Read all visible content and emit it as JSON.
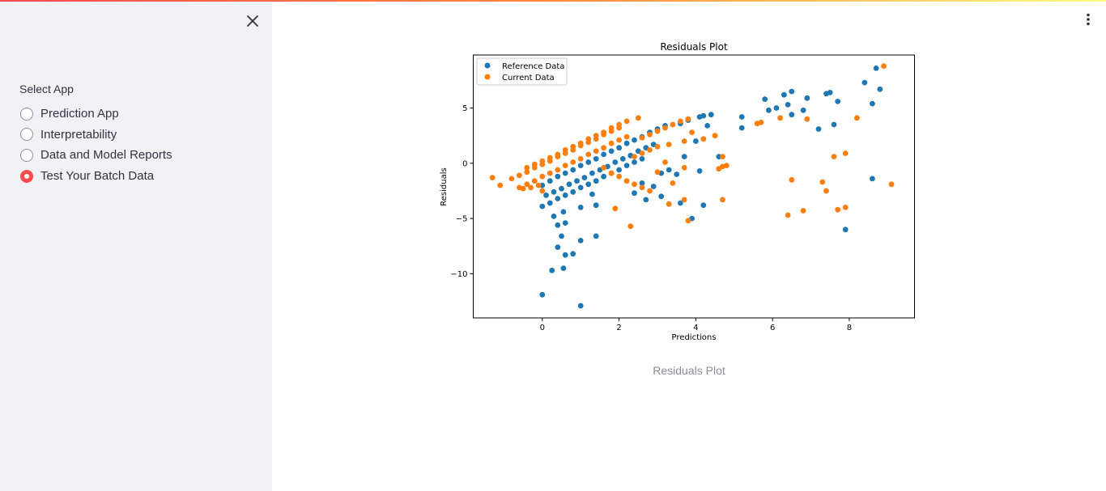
{
  "sidebar": {
    "close_icon": "close-icon",
    "select_label": "Select App",
    "options": [
      {
        "label": "Prediction App",
        "selected": false
      },
      {
        "label": "Interpretability",
        "selected": false
      },
      {
        "label": "Data and Model Reports",
        "selected": false
      },
      {
        "label": "Test Your Batch Data",
        "selected": true
      }
    ]
  },
  "header": {
    "menu_icon": "kebab-menu-icon"
  },
  "colors": {
    "accent": "#ff4b4b",
    "sidebar_bg": "#f0f2f6",
    "reference": "#1f77b4",
    "current": "#ff7f0e"
  },
  "caption": "Residuals Plot",
  "chart_data": {
    "type": "scatter",
    "title": "Residuals Plot",
    "xlabel": "Predictions",
    "ylabel": "Residuals",
    "xlim": [
      -1.8,
      9.7
    ],
    "ylim": [
      -14.0,
      9.8
    ],
    "xticks": [
      0,
      2,
      4,
      6,
      8
    ],
    "yticks": [
      -10,
      -5,
      0,
      5
    ],
    "grid": false,
    "legend_location": "upper-left",
    "series": [
      {
        "name": "Reference Data",
        "color": "#1f77b4",
        "points": [
          [
            0.0,
            -2.0
          ],
          [
            0.2,
            -1.6
          ],
          [
            0.4,
            -1.2
          ],
          [
            0.6,
            -0.9
          ],
          [
            0.8,
            -0.6
          ],
          [
            1.0,
            -0.2
          ],
          [
            1.2,
            0.1
          ],
          [
            1.4,
            0.4
          ],
          [
            1.6,
            0.8
          ],
          [
            1.8,
            1.1
          ],
          [
            2.0,
            1.4
          ],
          [
            2.2,
            1.8
          ],
          [
            2.4,
            2.1
          ],
          [
            2.6,
            2.4
          ],
          [
            2.8,
            2.8
          ],
          [
            3.0,
            3.1
          ],
          [
            3.2,
            3.4
          ],
          [
            0.1,
            -2.9
          ],
          [
            0.3,
            -2.6
          ],
          [
            0.5,
            -2.3
          ],
          [
            0.7,
            -1.9
          ],
          [
            0.9,
            -1.6
          ],
          [
            1.1,
            -1.3
          ],
          [
            1.3,
            -0.9
          ],
          [
            1.5,
            -0.6
          ],
          [
            1.7,
            -0.3
          ],
          [
            1.9,
            0.1
          ],
          [
            2.1,
            0.4
          ],
          [
            2.3,
            0.7
          ],
          [
            2.5,
            1.1
          ],
          [
            2.7,
            1.4
          ],
          [
            2.9,
            1.7
          ],
          [
            0.0,
            -3.9
          ],
          [
            0.2,
            -3.6
          ],
          [
            0.4,
            -3.2
          ],
          [
            0.6,
            -2.9
          ],
          [
            0.8,
            -2.6
          ],
          [
            1.0,
            -2.2
          ],
          [
            1.2,
            -1.9
          ],
          [
            1.4,
            -1.6
          ],
          [
            1.6,
            -1.2
          ],
          [
            1.8,
            -0.9
          ],
          [
            2.0,
            -0.6
          ],
          [
            2.2,
            -0.2
          ],
          [
            2.4,
            0.1
          ],
          [
            2.6,
            0.4
          ],
          [
            3.6,
            3.6
          ],
          [
            3.8,
            3.9
          ],
          [
            4.1,
            4.2
          ],
          [
            4.2,
            4.3
          ],
          [
            4.4,
            4.4
          ],
          [
            4.3,
            3.4
          ],
          [
            4.0,
            2.0
          ],
          [
            3.7,
            0.6
          ],
          [
            3.5,
            -1.0
          ],
          [
            3.3,
            -0.6
          ],
          [
            2.9,
            -2.1
          ],
          [
            2.6,
            -1.8
          ],
          [
            2.4,
            -2.7
          ],
          [
            2.7,
            -3.3
          ],
          [
            3.1,
            -3.0
          ],
          [
            0.3,
            -4.8
          ],
          [
            0.4,
            -5.6
          ],
          [
            0.5,
            -6.6
          ],
          [
            0.6,
            -5.4
          ],
          [
            0.55,
            -4.4
          ],
          [
            0.4,
            -7.6
          ],
          [
            0.6,
            -8.3
          ],
          [
            0.55,
            -9.5
          ],
          [
            0.25,
            -9.7
          ],
          [
            0.8,
            -8.2
          ],
          [
            1.0,
            -7.0
          ],
          [
            1.4,
            -6.6
          ],
          [
            0.0,
            -11.9
          ],
          [
            1.0,
            -12.9
          ],
          [
            1.3,
            -2.8
          ],
          [
            1.4,
            -3.8
          ],
          [
            1.0,
            -4.0
          ],
          [
            3.6,
            -3.6
          ],
          [
            4.2,
            -3.8
          ],
          [
            3.9,
            -5.0
          ],
          [
            3.1,
            -0.9
          ],
          [
            4.1,
            -0.7
          ],
          [
            4.6,
            0.6
          ],
          [
            5.2,
            3.2
          ],
          [
            5.2,
            4.2
          ],
          [
            5.8,
            5.8
          ],
          [
            5.9,
            4.8
          ],
          [
            6.1,
            5.0
          ],
          [
            6.3,
            6.2
          ],
          [
            6.4,
            5.3
          ],
          [
            6.5,
            4.4
          ],
          [
            6.5,
            6.5
          ],
          [
            6.8,
            4.8
          ],
          [
            6.9,
            5.9
          ],
          [
            7.2,
            3.1
          ],
          [
            7.4,
            6.3
          ],
          [
            7.5,
            6.4
          ],
          [
            7.6,
            3.5
          ],
          [
            7.7,
            5.6
          ],
          [
            8.4,
            7.3
          ],
          [
            8.6,
            5.4
          ],
          [
            8.7,
            8.6
          ],
          [
            8.8,
            6.7
          ],
          [
            8.6,
            -1.4
          ],
          [
            7.9,
            -6.0
          ]
        ]
      },
      {
        "name": "Current Data",
        "color": "#ff7f0e",
        "points": [
          [
            -0.4,
            -0.4
          ],
          [
            -0.2,
            -0.1
          ],
          [
            0.0,
            0.2
          ],
          [
            0.2,
            0.5
          ],
          [
            0.4,
            0.8
          ],
          [
            0.6,
            1.2
          ],
          [
            0.8,
            1.5
          ],
          [
            1.0,
            1.8
          ],
          [
            1.2,
            2.2
          ],
          [
            1.4,
            2.5
          ],
          [
            1.6,
            2.8
          ],
          [
            1.8,
            3.2
          ],
          [
            2.0,
            3.5
          ],
          [
            2.2,
            3.8
          ],
          [
            2.5,
            4.1
          ],
          [
            -0.8,
            -1.4
          ],
          [
            -0.6,
            -1.1
          ],
          [
            -0.4,
            -0.8
          ],
          [
            -0.2,
            -0.4
          ],
          [
            0.0,
            -0.1
          ],
          [
            0.2,
            0.2
          ],
          [
            0.4,
            0.6
          ],
          [
            0.6,
            0.9
          ],
          [
            0.8,
            1.2
          ],
          [
            1.0,
            1.6
          ],
          [
            1.2,
            1.9
          ],
          [
            1.4,
            2.2
          ],
          [
            1.6,
            2.6
          ],
          [
            1.8,
            2.9
          ],
          [
            2.0,
            3.2
          ],
          [
            -0.6,
            -2.2
          ],
          [
            -0.4,
            -1.9
          ],
          [
            -0.2,
            -1.6
          ],
          [
            0.0,
            -1.2
          ],
          [
            0.2,
            -0.9
          ],
          [
            0.4,
            -0.6
          ],
          [
            0.6,
            -0.2
          ],
          [
            0.8,
            0.1
          ],
          [
            1.0,
            0.4
          ],
          [
            1.2,
            0.8
          ],
          [
            1.4,
            1.1
          ],
          [
            1.6,
            1.4
          ],
          [
            1.8,
            1.8
          ],
          [
            2.0,
            2.1
          ],
          [
            2.2,
            2.4
          ],
          [
            2.6,
            2.3
          ],
          [
            2.8,
            2.6
          ],
          [
            3.0,
            2.9
          ],
          [
            3.2,
            3.2
          ],
          [
            3.4,
            3.5
          ],
          [
            3.6,
            3.8
          ],
          [
            3.8,
            4.0
          ],
          [
            2.4,
            0.6
          ],
          [
            2.6,
            0.9
          ],
          [
            2.8,
            1.2
          ],
          [
            3.0,
            1.5
          ],
          [
            3.3,
            1.7
          ],
          [
            3.7,
            2.0
          ],
          [
            3.9,
            2.8
          ],
          [
            4.2,
            2.2
          ],
          [
            4.5,
            2.5
          ],
          [
            1.6,
            -0.4
          ],
          [
            1.8,
            -0.9
          ],
          [
            2.0,
            -1.2
          ],
          [
            2.2,
            -1.6
          ],
          [
            2.4,
            -1.9
          ],
          [
            2.6,
            -2.2
          ],
          [
            2.8,
            -2.5
          ],
          [
            3.0,
            -0.8
          ],
          [
            3.2,
            0.1
          ],
          [
            3.4,
            -1.8
          ],
          [
            3.7,
            -0.4
          ],
          [
            1.9,
            -4.1
          ],
          [
            2.3,
            -5.7
          ],
          [
            3.3,
            -3.7
          ],
          [
            3.7,
            -3.3
          ],
          [
            3.8,
            -5.2
          ],
          [
            -1.3,
            -1.3
          ],
          [
            -1.1,
            -2.0
          ],
          [
            -0.5,
            -2.3
          ],
          [
            -0.3,
            -2.2
          ],
          [
            -0.1,
            -2.0
          ],
          [
            0.0,
            -2.5
          ],
          [
            4.6,
            -0.5
          ],
          [
            4.7,
            -0.3
          ],
          [
            4.8,
            -0.2
          ],
          [
            4.7,
            0.6
          ],
          [
            4.7,
            -3.3
          ],
          [
            5.6,
            3.6
          ],
          [
            5.7,
            3.7
          ],
          [
            6.2,
            4.1
          ],
          [
            6.5,
            -1.5
          ],
          [
            6.4,
            -4.7
          ],
          [
            6.8,
            -4.3
          ],
          [
            6.9,
            4.0
          ],
          [
            7.3,
            -1.7
          ],
          [
            7.4,
            -2.5
          ],
          [
            7.6,
            0.6
          ],
          [
            7.7,
            -4.2
          ],
          [
            7.9,
            0.9
          ],
          [
            7.9,
            -4.0
          ],
          [
            8.2,
            4.1
          ],
          [
            8.9,
            8.8
          ],
          [
            9.1,
            -1.9
          ]
        ]
      }
    ]
  }
}
